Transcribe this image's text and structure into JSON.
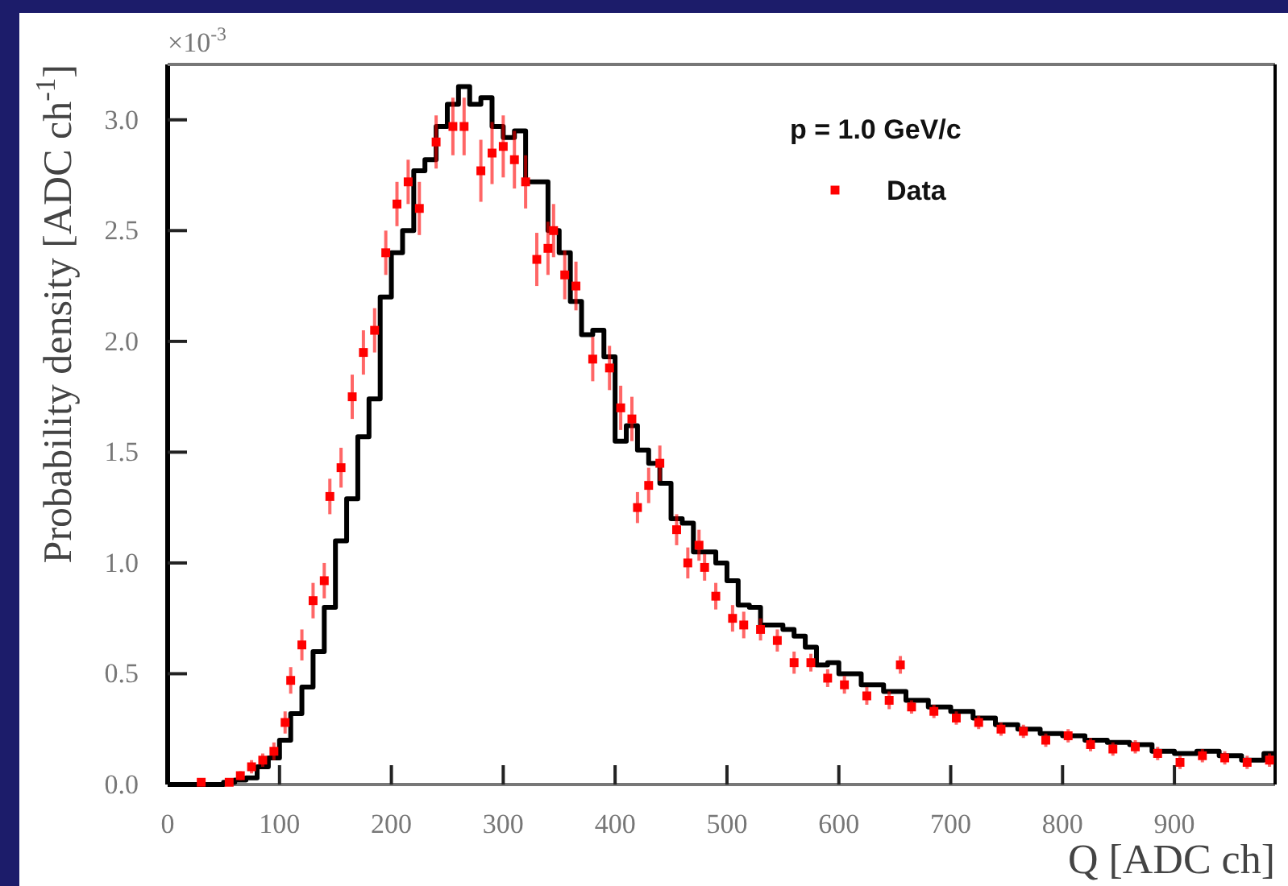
{
  "chart_data": {
    "type": "scatter",
    "xlabel": "Q [ADC ch]",
    "ylabel": "Probability density [ADC ch$^{-1}$]",
    "annotations": [
      "×10$^{-3}$"
    ],
    "legend_title": "p = 1.0 GeV/c",
    "legend": "top right",
    "grid": false,
    "xlim": [
      0,
      990
    ],
    "xticks": [
      0,
      100,
      200,
      300,
      400,
      500,
      600,
      700,
      800,
      900
    ],
    "ylim": [
      0,
      3.25
    ],
    "yticks": [
      {
        "value": 0,
        "label": "0.0"
      },
      {
        "value": 0.5,
        "label": "0.5"
      },
      {
        "value": 1,
        "label": "1.0"
      },
      {
        "value": 1.5,
        "label": "1.5"
      },
      {
        "value": 2,
        "label": "2.0"
      },
      {
        "value": 2.5,
        "label": "2.5"
      },
      {
        "value": 3,
        "label": "3.0"
      }
    ],
    "series": [
      {
        "type": "step",
        "color": "#000000",
        "x": [
          0,
          50,
          60,
          70,
          80,
          90,
          100,
          110,
          120,
          130,
          140,
          150,
          160,
          170,
          180,
          190,
          200,
          210,
          220,
          230,
          240,
          250,
          260,
          270,
          280,
          290,
          300,
          310,
          320,
          330,
          340,
          350,
          360,
          370,
          380,
          390,
          400,
          410,
          420,
          430,
          440,
          450,
          460,
          470,
          480,
          490,
          500,
          510,
          520,
          530,
          540,
          550,
          560,
          570,
          580,
          590,
          600,
          620,
          640,
          660,
          680,
          700,
          720,
          740,
          760,
          780,
          800,
          820,
          840,
          860,
          880,
          900,
          920,
          940,
          960,
          980,
          990
        ],
        "values": [
          0,
          0.01,
          0.02,
          0.03,
          0.08,
          0.12,
          0.2,
          0.32,
          0.44,
          0.6,
          0.8,
          1.1,
          1.29,
          1.57,
          1.74,
          2.2,
          2.4,
          2.5,
          2.77,
          2.82,
          2.97,
          3.07,
          3.15,
          3.07,
          3.1,
          2.97,
          2.92,
          2.95,
          2.72,
          2.72,
          2.5,
          2.4,
          2.18,
          2.03,
          2.05,
          1.93,
          1.55,
          1.62,
          1.51,
          1.45,
          1.36,
          1.2,
          1.18,
          1.05,
          1.05,
          1.0,
          0.92,
          0.81,
          0.8,
          0.72,
          0.72,
          0.7,
          0.67,
          0.62,
          0.54,
          0.55,
          0.5,
          0.45,
          0.42,
          0.38,
          0.35,
          0.33,
          0.3,
          0.27,
          0.25,
          0.23,
          0.22,
          0.2,
          0.19,
          0.18,
          0.15,
          0.14,
          0.15,
          0.13,
          0.11,
          0.14,
          0.14
        ]
      },
      {
        "name": "Data",
        "marker": "square",
        "color": "#ff0000",
        "x": [
          30,
          55,
          65,
          75,
          85,
          95,
          105,
          110,
          120,
          130,
          140,
          145,
          155,
          165,
          175,
          185,
          195,
          205,
          215,
          225,
          240,
          255,
          265,
          280,
          290,
          300,
          310,
          320,
          330,
          340,
          345,
          355,
          365,
          380,
          395,
          405,
          415,
          420,
          430,
          440,
          455,
          465,
          475,
          480,
          490,
          505,
          515,
          530,
          545,
          560,
          575,
          590,
          605,
          625,
          645,
          655,
          665,
          685,
          705,
          725,
          745,
          765,
          785,
          805,
          825,
          845,
          865,
          885,
          905,
          925,
          945,
          965,
          985
        ],
        "values": [
          0.01,
          0.01,
          0.04,
          0.08,
          0.11,
          0.15,
          0.28,
          0.47,
          0.63,
          0.83,
          0.92,
          1.3,
          1.43,
          1.75,
          1.95,
          2.05,
          2.4,
          2.62,
          2.72,
          2.6,
          2.9,
          2.97,
          2.97,
          2.77,
          2.85,
          2.88,
          2.82,
          2.72,
          2.37,
          2.42,
          2.5,
          2.3,
          2.25,
          1.92,
          1.88,
          1.7,
          1.65,
          1.25,
          1.35,
          1.45,
          1.15,
          1.0,
          1.08,
          0.98,
          0.85,
          0.75,
          0.72,
          0.7,
          0.65,
          0.55,
          0.55,
          0.48,
          0.45,
          0.4,
          0.38,
          0.54,
          0.35,
          0.33,
          0.3,
          0.28,
          0.25,
          0.24,
          0.2,
          0.22,
          0.18,
          0.16,
          0.17,
          0.14,
          0.1,
          0.13,
          0.12,
          0.1,
          0.11
        ],
        "errors": [
          0.01,
          0.01,
          0.02,
          0.03,
          0.03,
          0.04,
          0.05,
          0.06,
          0.07,
          0.08,
          0.08,
          0.08,
          0.09,
          0.1,
          0.1,
          0.1,
          0.1,
          0.1,
          0.1,
          0.12,
          0.12,
          0.13,
          0.13,
          0.14,
          0.14,
          0.14,
          0.13,
          0.12,
          0.12,
          0.12,
          0.12,
          0.11,
          0.11,
          0.1,
          0.1,
          0.1,
          0.1,
          0.07,
          0.08,
          0.08,
          0.07,
          0.07,
          0.07,
          0.06,
          0.06,
          0.06,
          0.06,
          0.05,
          0.05,
          0.05,
          0.04,
          0.04,
          0.04,
          0.04,
          0.04,
          0.04,
          0.03,
          0.03,
          0.03,
          0.03,
          0.03,
          0.03,
          0.03,
          0.03,
          0.03,
          0.03,
          0.03,
          0.03,
          0.03,
          0.03,
          0.03,
          0.03,
          0.03
        ]
      }
    ]
  }
}
